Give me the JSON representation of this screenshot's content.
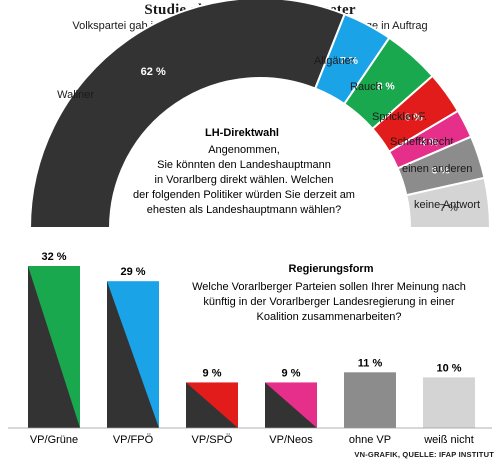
{
  "header": {
    "title": "Studie als Stimmungsbarometer",
    "subtitle": "Volkspartei gab im Hinblick auf Landtagswahlen 2019 Umfrage in Auftrag"
  },
  "footer": "VN-GRAFIK, QUELLE: IFAP INSTITUT",
  "colors": {
    "dark": "#333333",
    "green": "#1aa84f",
    "blue": "#1ba3e8",
    "red": "#e21b1b",
    "pink": "#e62e8b",
    "grey": "#8c8c8c",
    "light_grey": "#d4d4d4"
  },
  "chart_data": [
    {
      "type": "pie",
      "title": "LH-Direktwahl",
      "question": [
        "Angenommen,",
        "Sie könnten den Landeshauptmann",
        "in Vorarlberg direkt wählen. Welchen",
        "der folgenden Politiker würden Sie derzeit am",
        "ehesten als Landeshauptmann wählen?"
      ],
      "slices": [
        {
          "label": "Wallner",
          "value": 62,
          "value_label": "62 %",
          "color": "#333333"
        },
        {
          "label": "Allgäuer",
          "value": 7,
          "value_label": "7 %",
          "color": "#1ba3e8"
        },
        {
          "label": "Rauch",
          "value": 8,
          "value_label": "8 %",
          "color": "#1aa84f"
        },
        {
          "label": "Sprickler-F.",
          "value": 6,
          "value_label": "6 %",
          "color": "#e21b1b"
        },
        {
          "label": "Scheffknecht",
          "value": 4,
          "value_label": "4 %",
          "color": "#e62e8b"
        },
        {
          "label": "einen anderen",
          "value": 6,
          "value_label": "6 %",
          "color": "#8c8c8c"
        },
        {
          "label": "keine Antwort",
          "value": 7,
          "value_label": "7 %",
          "color": "#d4d4d4"
        }
      ]
    },
    {
      "type": "bar",
      "title": "Regierungsform",
      "question": [
        "Welche Vorarlberger Parteien sollen Ihrer Meinung nach",
        "künftig in der Vorarlberger Landesregierung in einer",
        "Koalition zusammenarbeiten?"
      ],
      "categories": [
        "VP/Grüne",
        "VP/FPÖ",
        "VP/SPÖ",
        "VP/Neos",
        "ohne VP",
        "weiß nicht"
      ],
      "values": [
        32,
        29,
        9,
        9,
        11,
        10
      ],
      "value_labels": [
        "32 %",
        "29 %",
        "9 %",
        "9 %",
        "11 %",
        "10 %"
      ],
      "colors": [
        "#1aa84f",
        "#1ba3e8",
        "#e21b1b",
        "#e62e8b",
        "#8c8c8c",
        "#d4d4d4"
      ],
      "split": [
        true,
        true,
        true,
        true,
        false,
        false
      ]
    }
  ]
}
